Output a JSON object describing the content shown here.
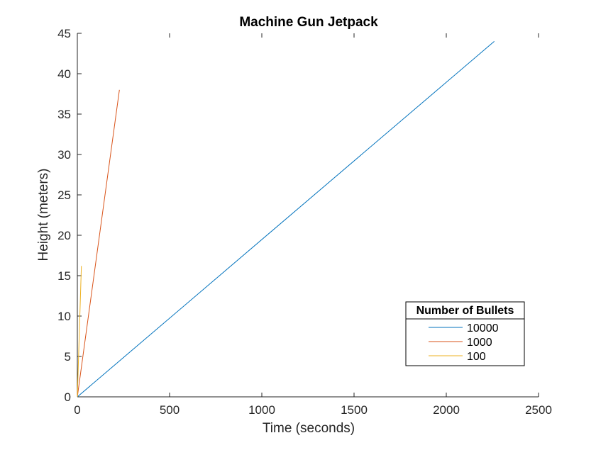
{
  "chart_data": {
    "type": "line",
    "title": "Machine Gun Jetpack",
    "xlabel": "Time (seconds)",
    "ylabel": "Height (meters)",
    "xlim": [
      0,
      2500
    ],
    "ylim": [
      0,
      45
    ],
    "xticks": [
      0,
      500,
      1000,
      1500,
      2000,
      2500
    ],
    "yticks": [
      0,
      5,
      10,
      15,
      20,
      25,
      30,
      35,
      40,
      45
    ],
    "grid": false,
    "legend": {
      "title": "Number of Bullets",
      "placement": "bottom-right"
    },
    "series": [
      {
        "name": "10000",
        "color": "#0072bd",
        "x": [
          0,
          2260
        ],
        "y": [
          0,
          44
        ]
      },
      {
        "name": "1000",
        "color": "#d95319",
        "x": [
          0,
          228
        ],
        "y": [
          0,
          38
        ]
      },
      {
        "name": "100",
        "color": "#edb120",
        "x": [
          0,
          22
        ],
        "y": [
          0,
          16.2
        ]
      }
    ]
  }
}
